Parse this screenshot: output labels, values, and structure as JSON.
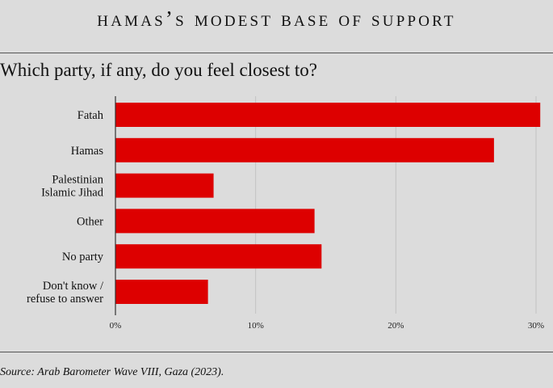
{
  "header": {
    "title": "Hamas’s Modest Base of Support",
    "subtitle": "Which party, if any, do you feel closest to?"
  },
  "footer": {
    "source": "Source: Arab Barometer Wave VIII, Gaza (2023)."
  },
  "chart_data": {
    "type": "bar",
    "orientation": "horizontal",
    "title": "Hamas’s Modest Base of Support",
    "subtitle": "Which party, if any, do you feel closest to?",
    "categories": [
      [
        "Fatah"
      ],
      [
        "Hamas"
      ],
      [
        "Palestinian",
        "Islamic Jihad"
      ],
      [
        "Other"
      ],
      [
        "No party"
      ],
      [
        "Don't know /",
        "refuse to answer"
      ]
    ],
    "values": [
      30.3,
      27.0,
      7.0,
      14.2,
      14.7,
      6.6
    ],
    "xlim": [
      0,
      30
    ],
    "xticks": [
      0,
      10,
      20,
      30
    ],
    "xtick_labels": [
      "0%",
      "10%",
      "20%",
      "30%"
    ],
    "grid": "vertical",
    "bar_color": "#dd0000",
    "grid_color": "#c2c2c2",
    "axis_color": "#333333",
    "background": "#dcdcdc"
  }
}
